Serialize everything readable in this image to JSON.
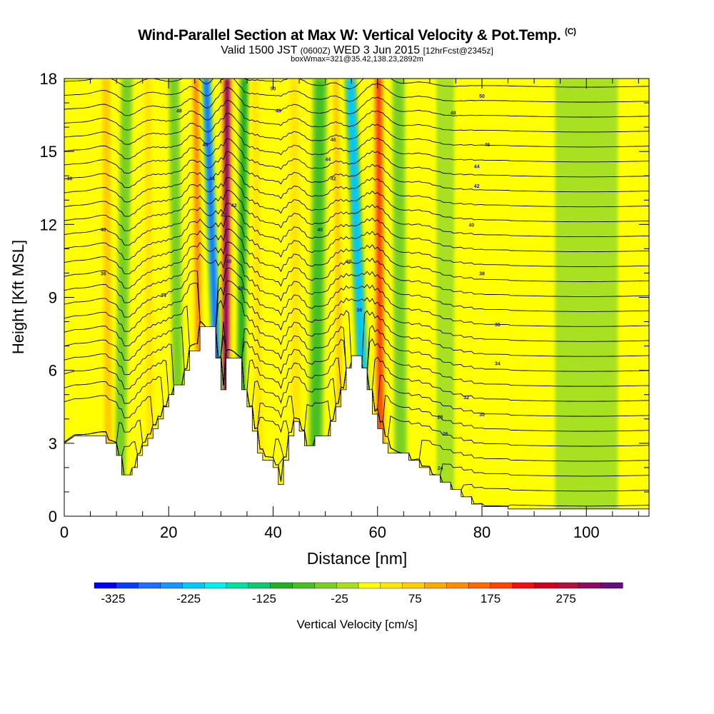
{
  "title": {
    "main": "Wind-Parallel Section at Max W: Vertical Velocity & Pot.Temp.",
    "copyright": "(C)",
    "valid_prefix": "Valid 1500 JST",
    "valid_utc": "(0600Z)",
    "valid_date": "WED 3 Jun 2015",
    "forecast": "[12hrFcst@2345z]",
    "box_info": "boxWmax=321@35.42,138.23,2892m"
  },
  "chart_data": {
    "type": "heatmap",
    "xlabel": "Distance [nm]",
    "ylabel": "Height [Kft MSL]",
    "xlim": [
      0,
      112
    ],
    "ylim": [
      0,
      18
    ],
    "x_ticks": [
      "0",
      "20",
      "40",
      "60",
      "80",
      "100"
    ],
    "y_ticks": [
      "0",
      "3",
      "6",
      "9",
      "12",
      "15",
      "18"
    ],
    "colorbar": {
      "label": "Vertical Velocity [cm/s]",
      "range": [
        -350,
        350
      ],
      "tick_labels": [
        "-325",
        "-225",
        "-125",
        "-25",
        "75",
        "175",
        "275"
      ],
      "colors": [
        "#0000f5",
        "#0a3cff",
        "#1e6eff",
        "#1496ff",
        "#00c8ff",
        "#00f0f0",
        "#00e0a0",
        "#10c870",
        "#20b020",
        "#44c020",
        "#7ad020",
        "#a8e020",
        "#ffff00",
        "#ffe600",
        "#ffcc00",
        "#ffaa00",
        "#ff8c00",
        "#ff6a00",
        "#ff4400",
        "#f01010",
        "#d00020",
        "#b0103c",
        "#900a60",
        "#680a80"
      ]
    },
    "terrain_height_kft": [
      [
        0,
        3.0
      ],
      [
        2,
        3.3
      ],
      [
        8,
        3.3
      ],
      [
        8,
        3.0
      ],
      [
        10,
        3.0
      ],
      [
        10,
        2.5
      ],
      [
        11,
        2.5
      ],
      [
        11,
        1.7
      ],
      [
        13,
        1.7
      ],
      [
        13,
        2.0
      ],
      [
        14,
        2.0
      ],
      [
        14,
        2.5
      ],
      [
        15,
        2.5
      ],
      [
        15,
        2.9
      ],
      [
        16,
        2.9
      ],
      [
        16,
        3.2
      ],
      [
        17,
        3.2
      ],
      [
        17,
        3.6
      ],
      [
        18,
        3.6
      ],
      [
        18,
        4.0
      ],
      [
        19,
        4.0
      ],
      [
        19,
        4.5
      ],
      [
        20,
        4.5
      ],
      [
        20,
        5.0
      ],
      [
        21,
        5.0
      ],
      [
        21,
        5.4
      ],
      [
        23,
        5.4
      ],
      [
        23,
        6.0
      ],
      [
        24,
        6.0
      ],
      [
        24,
        6.8
      ],
      [
        26,
        6.8
      ],
      [
        26,
        7.8
      ],
      [
        29,
        7.8
      ],
      [
        29,
        6.5
      ],
      [
        30,
        6.5
      ],
      [
        30,
        5.2
      ],
      [
        31,
        5.2
      ],
      [
        31,
        6.5
      ],
      [
        34,
        6.5
      ],
      [
        34,
        5.2
      ],
      [
        35,
        5.2
      ],
      [
        35,
        4.5
      ],
      [
        36,
        4.5
      ],
      [
        36,
        3.5
      ],
      [
        37,
        3.5
      ],
      [
        37,
        2.6
      ],
      [
        38,
        2.6
      ],
      [
        38,
        2.3
      ],
      [
        40,
        2.3
      ],
      [
        40,
        2.0
      ],
      [
        41,
        2.0
      ],
      [
        41,
        1.3
      ],
      [
        42,
        1.3
      ],
      [
        42,
        2.3
      ],
      [
        43,
        2.3
      ],
      [
        43,
        3.3
      ],
      [
        44,
        3.3
      ],
      [
        44,
        3.9
      ],
      [
        45,
        3.9
      ],
      [
        45,
        3.5
      ],
      [
        46,
        3.5
      ],
      [
        46,
        2.9
      ],
      [
        48,
        2.9
      ],
      [
        48,
        3.3
      ],
      [
        51,
        3.3
      ],
      [
        51,
        3.9
      ],
      [
        52,
        3.9
      ],
      [
        52,
        4.5
      ],
      [
        53,
        4.5
      ],
      [
        53,
        5.2
      ],
      [
        54,
        5.2
      ],
      [
        54,
        6.1
      ],
      [
        55,
        6.1
      ],
      [
        55,
        6.6
      ],
      [
        57,
        6.6
      ],
      [
        57,
        6.1
      ],
      [
        58,
        6.1
      ],
      [
        58,
        5.2
      ],
      [
        59,
        5.2
      ],
      [
        59,
        4.2
      ],
      [
        60,
        4.2
      ],
      [
        60,
        3.6
      ],
      [
        61,
        3.6
      ],
      [
        61,
        3.0
      ],
      [
        62,
        3.0
      ],
      [
        62,
        2.6
      ],
      [
        66,
        2.6
      ],
      [
        66,
        2.3
      ],
      [
        68,
        2.3
      ],
      [
        68,
        2.0
      ],
      [
        70,
        2.0
      ],
      [
        70,
        1.7
      ],
      [
        72,
        1.7
      ],
      [
        72,
        1.4
      ],
      [
        74,
        1.4
      ],
      [
        74,
        1.1
      ],
      [
        76,
        1.1
      ],
      [
        76,
        0.8
      ],
      [
        78,
        0.8
      ],
      [
        78,
        0.5
      ],
      [
        80,
        0.5
      ],
      [
        80,
        0.4
      ],
      [
        85,
        0.4
      ],
      [
        85,
        0.3
      ],
      [
        112,
        0.3
      ],
      [
        112,
        0.0
      ],
      [
        0,
        0.0
      ]
    ],
    "updraft_bands": [
      {
        "x_top": 31.2,
        "x_bottom": 30.8,
        "width": 2.2,
        "w_cm_s": 300
      },
      {
        "x_top": 27.2,
        "x_bottom": 30.2,
        "width": 2.0,
        "w_cm_s": -280
      },
      {
        "x_top": 34.5,
        "x_bottom": 33.6,
        "width": 2.0,
        "w_cm_s": -120
      },
      {
        "x_top": 25.2,
        "x_bottom": 26.0,
        "width": 1.8,
        "w_cm_s": 150
      },
      {
        "x_top": 60.2,
        "x_bottom": 60.6,
        "width": 2.4,
        "w_cm_s": 200
      },
      {
        "x_top": 54.8,
        "x_bottom": 58.2,
        "width": 2.4,
        "w_cm_s": -230
      },
      {
        "x_top": 52.0,
        "x_bottom": 53.0,
        "width": 1.6,
        "w_cm_s": 90
      },
      {
        "x_top": 49.0,
        "x_bottom": 48.0,
        "width": 3.0,
        "w_cm_s": -90
      },
      {
        "x_top": 21.0,
        "x_bottom": 22.0,
        "width": 2.2,
        "w_cm_s": -60
      },
      {
        "x_top": 12.0,
        "x_bottom": 10.5,
        "width": 2.4,
        "w_cm_s": -80
      },
      {
        "x_top": 8.0,
        "x_bottom": 8.5,
        "width": 2.2,
        "w_cm_s": 90
      },
      {
        "x_top": 16.0,
        "x_bottom": 16.5,
        "width": 2.0,
        "w_cm_s": 60
      },
      {
        "x_top": 36.5,
        "x_bottom": 37.5,
        "width": 2.0,
        "w_cm_s": 60
      },
      {
        "x_top": 44.0,
        "x_bottom": 44.5,
        "width": 2.4,
        "w_cm_s": 70
      },
      {
        "x_top": 64.0,
        "x_bottom": 64.5,
        "width": 2.6,
        "w_cm_s": -70
      },
      {
        "x_top": 68.0,
        "x_bottom": 68.5,
        "width": 3.0,
        "w_cm_s": 40
      },
      {
        "x_top": 73.0,
        "x_bottom": 73.0,
        "width": 3.4,
        "w_cm_s": -50
      },
      {
        "x_top": 100.0,
        "x_bottom": 100.0,
        "width": 12.0,
        "w_cm_s": -35
      }
    ],
    "isentrope_labels": [
      {
        "text": "46",
        "x": 1,
        "y": 13.9
      },
      {
        "text": "40",
        "x": 7.5,
        "y": 11.8
      },
      {
        "text": "36",
        "x": 7.5,
        "y": 10.0
      },
      {
        "text": "48",
        "x": 22,
        "y": 16.7
      },
      {
        "text": "34",
        "x": 19,
        "y": 9.1
      },
      {
        "text": "46",
        "x": 27,
        "y": 15.3
      },
      {
        "text": "44",
        "x": 28.3,
        "y": 13.9
      },
      {
        "text": "42",
        "x": 30.5,
        "y": 12.4
      },
      {
        "text": "42",
        "x": 32.5,
        "y": 12.8
      },
      {
        "text": "40",
        "x": 31.5,
        "y": 10.5
      },
      {
        "text": "38",
        "x": 33.8,
        "y": 9.4
      },
      {
        "text": "50",
        "x": 40,
        "y": 17.6
      },
      {
        "text": "48",
        "x": 41,
        "y": 16.7
      },
      {
        "text": "46",
        "x": 51.5,
        "y": 15.5
      },
      {
        "text": "44",
        "x": 50.5,
        "y": 14.7
      },
      {
        "text": "42",
        "x": 51.5,
        "y": 13.9
      },
      {
        "text": "40",
        "x": 49,
        "y": 11.8
      },
      {
        "text": "38",
        "x": 54.5,
        "y": 10.5
      },
      {
        "text": "36",
        "x": 56.5,
        "y": 8.5
      },
      {
        "text": "50",
        "x": 80,
        "y": 17.3
      },
      {
        "text": "48",
        "x": 74.5,
        "y": 16.6
      },
      {
        "text": "46",
        "x": 81,
        "y": 15.3
      },
      {
        "text": "44",
        "x": 79,
        "y": 14.4
      },
      {
        "text": "42",
        "x": 79,
        "y": 13.6
      },
      {
        "text": "40",
        "x": 78,
        "y": 12.0
      },
      {
        "text": "38",
        "x": 80,
        "y": 10.0
      },
      {
        "text": "36",
        "x": 83,
        "y": 7.9
      },
      {
        "text": "34",
        "x": 83,
        "y": 6.3
      },
      {
        "text": "32",
        "x": 77,
        "y": 4.9
      },
      {
        "text": "30",
        "x": 80,
        "y": 4.2
      },
      {
        "text": "28",
        "x": 72,
        "y": 4.1
      },
      {
        "text": "26",
        "x": 73,
        "y": 3.4
      },
      {
        "text": "24",
        "x": 72,
        "y": 2.0
      }
    ]
  }
}
